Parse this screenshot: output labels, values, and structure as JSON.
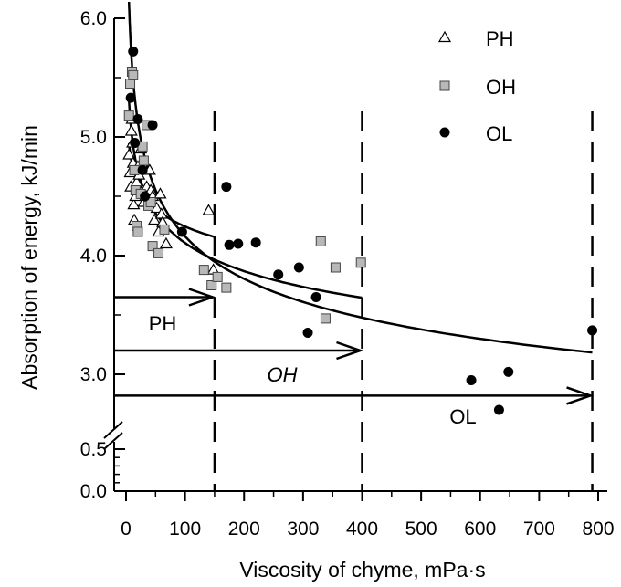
{
  "chart_data": {
    "type": "scatter",
    "xlabel": "Viscosity of chyme, mPa·s",
    "ylabel": "Absorption of energy, kJ/min",
    "xlim": [
      0,
      800
    ],
    "x_ticks": [
      0,
      100,
      200,
      300,
      400,
      500,
      600,
      700,
      800
    ],
    "x_tick_labels": [
      "0",
      "100",
      "200",
      "300",
      "400",
      "500",
      "600",
      "700",
      "800"
    ],
    "y_axis_break": true,
    "y_lower_segment": {
      "range": [
        0,
        0.5
      ],
      "ticks": [
        0.0,
        0.5
      ],
      "tick_labels": [
        "0.0",
        "0.5"
      ]
    },
    "y_upper_segment": {
      "range": [
        2.6,
        6.0
      ],
      "ticks": [
        3.0,
        4.0,
        5.0,
        6.0
      ],
      "tick_labels": [
        "3.0",
        "4.0",
        "5.0",
        "6.0"
      ]
    },
    "legend_position": "top-right",
    "series": [
      {
        "name": "PH",
        "marker": "open-triangle",
        "points": [
          [
            5,
            4.85
          ],
          [
            7,
            4.7
          ],
          [
            8,
            4.58
          ],
          [
            9,
            5.05
          ],
          [
            10,
            5.15
          ],
          [
            11,
            4.95
          ],
          [
            12,
            4.78
          ],
          [
            13,
            4.43
          ],
          [
            14,
            4.3
          ],
          [
            16,
            4.5
          ],
          [
            18,
            4.62
          ],
          [
            20,
            4.75
          ],
          [
            22,
            4.68
          ],
          [
            25,
            4.9
          ],
          [
            28,
            4.55
          ],
          [
            30,
            4.45
          ],
          [
            35,
            4.58
          ],
          [
            40,
            4.72
          ],
          [
            42,
            4.55
          ],
          [
            45,
            4.5
          ],
          [
            48,
            4.3
          ],
          [
            52,
            4.4
          ],
          [
            55,
            4.2
          ],
          [
            58,
            4.52
          ],
          [
            60,
            4.35
          ],
          [
            62,
            4.28
          ],
          [
            68,
            4.1
          ],
          [
            140,
            4.38
          ],
          [
            148,
            3.88
          ]
        ]
      },
      {
        "name": "OH",
        "marker": "gray-square",
        "points": [
          [
            5,
            5.18
          ],
          [
            7,
            5.45
          ],
          [
            10,
            5.55
          ],
          [
            12,
            5.52
          ],
          [
            14,
            4.72
          ],
          [
            16,
            4.55
          ],
          [
            18,
            4.25
          ],
          [
            20,
            4.2
          ],
          [
            25,
            4.52
          ],
          [
            28,
            4.92
          ],
          [
            30,
            4.8
          ],
          [
            35,
            5.1
          ],
          [
            38,
            4.42
          ],
          [
            42,
            4.45
          ],
          [
            45,
            4.08
          ],
          [
            55,
            4.02
          ],
          [
            65,
            4.22
          ],
          [
            132,
            3.88
          ],
          [
            145,
            3.75
          ],
          [
            155,
            3.82
          ],
          [
            170,
            3.73
          ],
          [
            330,
            4.12
          ],
          [
            338,
            3.47
          ],
          [
            355,
            3.9
          ],
          [
            398,
            3.94
          ]
        ]
      },
      {
        "name": "OL",
        "marker": "filled-circle",
        "points": [
          [
            8,
            5.33
          ],
          [
            12,
            5.72
          ],
          [
            15,
            4.95
          ],
          [
            20,
            5.15
          ],
          [
            28,
            4.72
          ],
          [
            32,
            4.5
          ],
          [
            45,
            5.1
          ],
          [
            95,
            4.2
          ],
          [
            170,
            4.58
          ],
          [
            175,
            4.09
          ],
          [
            190,
            4.1
          ],
          [
            220,
            4.11
          ],
          [
            258,
            3.84
          ],
          [
            293,
            3.9
          ],
          [
            308,
            3.35
          ],
          [
            322,
            3.65
          ],
          [
            585,
            2.95
          ],
          [
            632,
            2.7
          ],
          [
            648,
            3.02
          ],
          [
            790,
            3.37
          ]
        ]
      }
    ],
    "fitted_curves": [
      {
        "series": "PH",
        "x_range": [
          5,
          150
        ]
      },
      {
        "series": "OH",
        "x_range": [
          5,
          400
        ]
      },
      {
        "series": "OL",
        "x_range": [
          5,
          790
        ]
      }
    ],
    "vertical_lines": [
      {
        "x": 150,
        "style": "dashed"
      },
      {
        "x": 400,
        "style": "dashed"
      },
      {
        "x": 790,
        "style": "dashed"
      }
    ],
    "range_arrows": [
      {
        "label": "PH",
        "label_style": "normal",
        "x_end": 150,
        "y": 3.65
      },
      {
        "label": "OH",
        "label_style": "italic",
        "x_end": 400,
        "y": 3.2
      },
      {
        "label": "OL",
        "label_style": "normal",
        "x_end": 790,
        "y": 2.82
      }
    ]
  }
}
